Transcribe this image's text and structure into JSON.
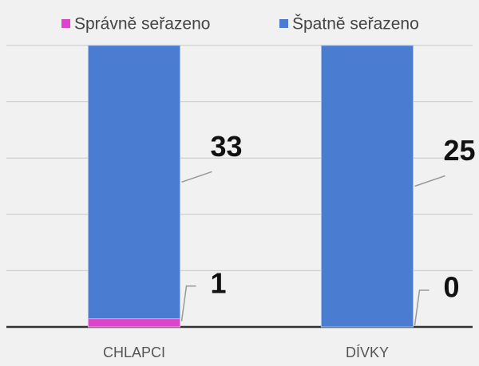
{
  "chart_data": {
    "type": "bar",
    "stacking": "percent",
    "categories": [
      "CHLAPCI",
      "DÍVKY"
    ],
    "series": [
      {
        "name": "Správně seřazeno",
        "color": "#dd44cc",
        "values": [
          1,
          0
        ]
      },
      {
        "name": "Špatně seřazeno",
        "color": "#4a7dd1",
        "values": [
          33,
          25
        ]
      }
    ],
    "ylim": [
      0,
      100
    ],
    "gridlines": [
      0,
      20,
      40,
      60,
      80,
      100
    ],
    "legend": "top"
  }
}
